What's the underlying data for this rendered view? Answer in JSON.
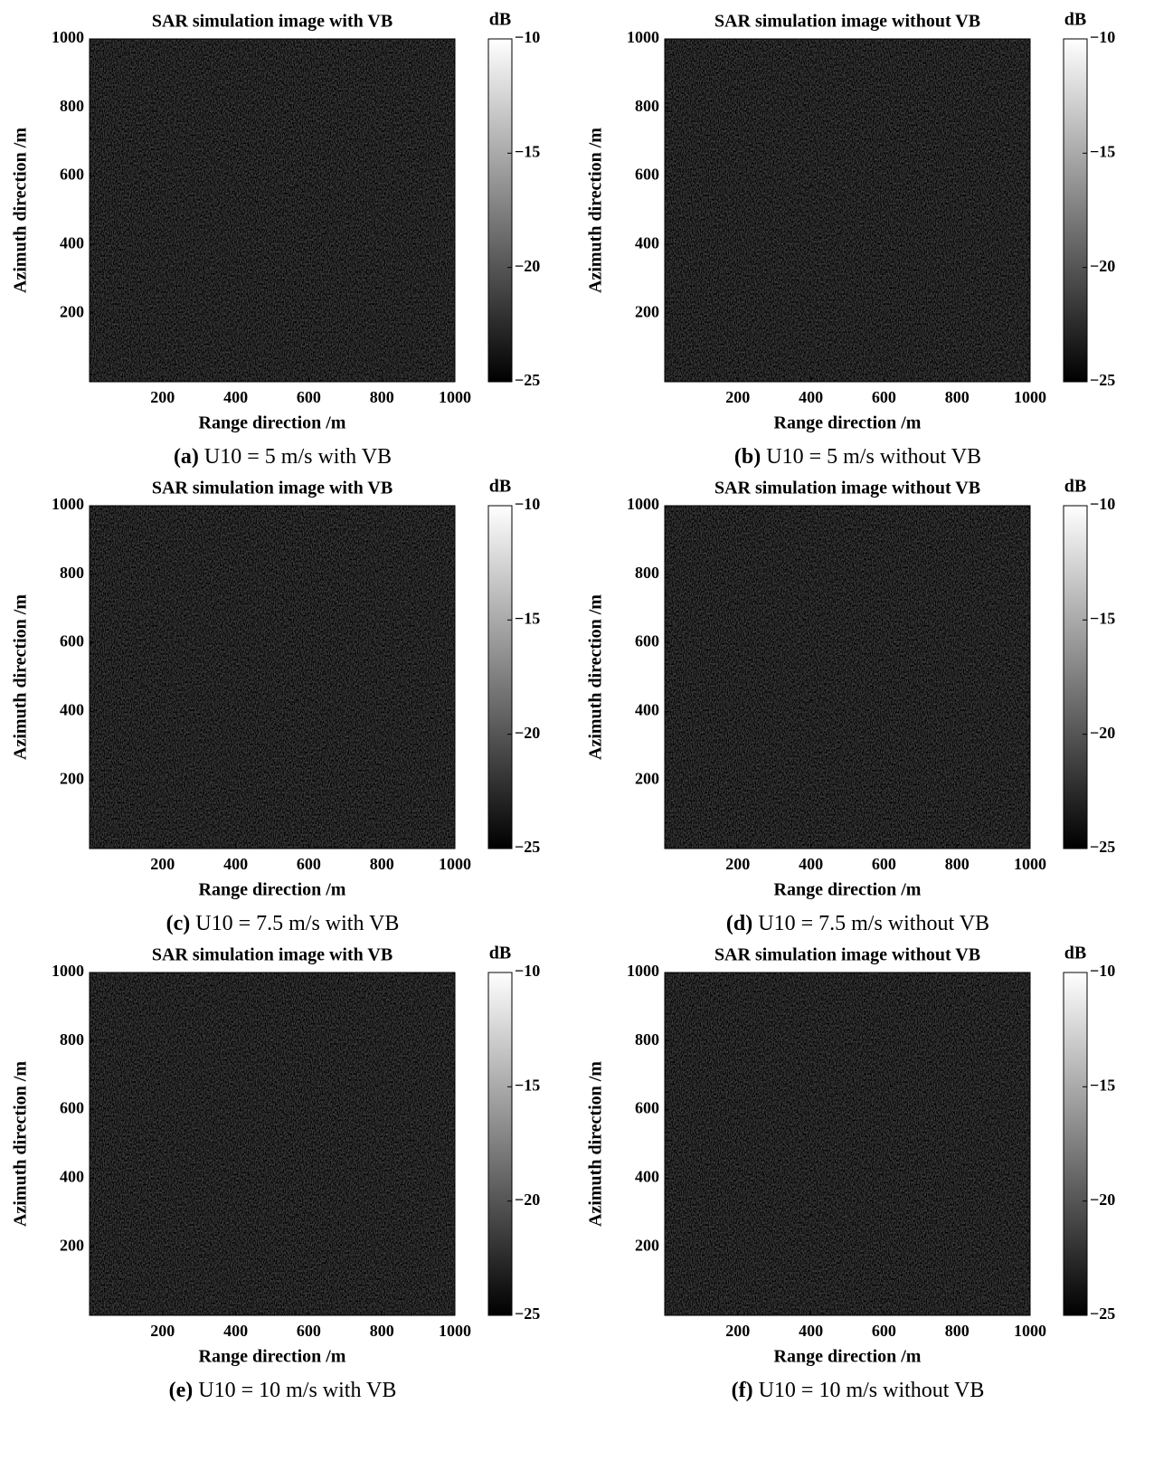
{
  "chart_data": [
    {
      "type": "heatmap",
      "title": "SAR simulation image with VB",
      "xlabel": "Range direction /m",
      "ylabel": "Azimuth direction /m",
      "xlim": [
        0,
        1000
      ],
      "xticks": [
        200,
        400,
        600,
        800,
        1000
      ],
      "ylim": [
        0,
        1000
      ],
      "yticks": [
        200,
        400,
        600,
        800,
        1000
      ],
      "colorbar_label": "dB",
      "clim": [
        -25,
        -10
      ],
      "cticks": [
        {
          "value": -25,
          "label": "−25"
        },
        {
          "value": -20,
          "label": "−20"
        },
        {
          "value": -15,
          "label": "−15"
        },
        {
          "value": -10,
          "label": "−10"
        }
      ],
      "caption_letter": "(a)",
      "caption": "U10 = 5 m/s with VB"
    },
    {
      "type": "heatmap",
      "title": "SAR simulation image without VB",
      "xlabel": "Range direction /m",
      "ylabel": "Azimuth direction /m",
      "xlim": [
        0,
        1000
      ],
      "xticks": [
        200,
        400,
        600,
        800,
        1000
      ],
      "ylim": [
        0,
        1000
      ],
      "yticks": [
        200,
        400,
        600,
        800,
        1000
      ],
      "colorbar_label": "dB",
      "clim": [
        -25,
        -10
      ],
      "cticks": [
        {
          "value": -25,
          "label": "−25"
        },
        {
          "value": -20,
          "label": "−20"
        },
        {
          "value": -15,
          "label": "−15"
        },
        {
          "value": -10,
          "label": "−10"
        }
      ],
      "caption_letter": "(b)",
      "caption": "U10 = 5 m/s without VB"
    },
    {
      "type": "heatmap",
      "title": "SAR simulation image with VB",
      "xlabel": "Range direction /m",
      "ylabel": "Azimuth direction /m",
      "xlim": [
        0,
        1000
      ],
      "xticks": [
        200,
        400,
        600,
        800,
        1000
      ],
      "ylim": [
        0,
        1000
      ],
      "yticks": [
        200,
        400,
        600,
        800,
        1000
      ],
      "colorbar_label": "dB",
      "clim": [
        -25,
        -10
      ],
      "cticks": [
        {
          "value": -25,
          "label": "−25"
        },
        {
          "value": -20,
          "label": "−20"
        },
        {
          "value": -15,
          "label": "−15"
        },
        {
          "value": -10,
          "label": "−10"
        }
      ],
      "caption_letter": "(c)",
      "caption": "U10 = 7.5 m/s with VB"
    },
    {
      "type": "heatmap",
      "title": "SAR simulation image without VB",
      "xlabel": "Range direction /m",
      "ylabel": "Azimuth direction /m",
      "xlim": [
        0,
        1000
      ],
      "xticks": [
        200,
        400,
        600,
        800,
        1000
      ],
      "ylim": [
        0,
        1000
      ],
      "yticks": [
        200,
        400,
        600,
        800,
        1000
      ],
      "colorbar_label": "dB",
      "clim": [
        -25,
        -10
      ],
      "cticks": [
        {
          "value": -25,
          "label": "−25"
        },
        {
          "value": -20,
          "label": "−20"
        },
        {
          "value": -15,
          "label": "−15"
        },
        {
          "value": -10,
          "label": "−10"
        }
      ],
      "caption_letter": "(d)",
      "caption": "U10 = 7.5 m/s without VB"
    },
    {
      "type": "heatmap",
      "title": "SAR simulation image with VB",
      "xlabel": "Range direction /m",
      "ylabel": "Azimuth direction /m",
      "xlim": [
        0,
        1000
      ],
      "xticks": [
        200,
        400,
        600,
        800,
        1000
      ],
      "ylim": [
        0,
        1000
      ],
      "yticks": [
        200,
        400,
        600,
        800,
        1000
      ],
      "colorbar_label": "dB",
      "clim": [
        -25,
        -10
      ],
      "cticks": [
        {
          "value": -25,
          "label": "−25"
        },
        {
          "value": -20,
          "label": "−20"
        },
        {
          "value": -15,
          "label": "−15"
        },
        {
          "value": -10,
          "label": "−10"
        }
      ],
      "caption_letter": "(e)",
      "caption": "U10 = 10 m/s with VB"
    },
    {
      "type": "heatmap",
      "title": "SAR simulation image without VB",
      "xlabel": "Range direction /m",
      "ylabel": "Azimuth direction /m",
      "xlim": [
        0,
        1000
      ],
      "xticks": [
        200,
        400,
        600,
        800,
        1000
      ],
      "ylim": [
        0,
        1000
      ],
      "yticks": [
        200,
        400,
        600,
        800,
        1000
      ],
      "colorbar_label": "dB",
      "clim": [
        -25,
        -10
      ],
      "cticks": [
        {
          "value": -25,
          "label": "−25"
        },
        {
          "value": -20,
          "label": "−20"
        },
        {
          "value": -15,
          "label": "−15"
        },
        {
          "value": -10,
          "label": "−10"
        }
      ],
      "caption_letter": "(f)",
      "caption": "U10 = 10 m/s without VB"
    }
  ]
}
